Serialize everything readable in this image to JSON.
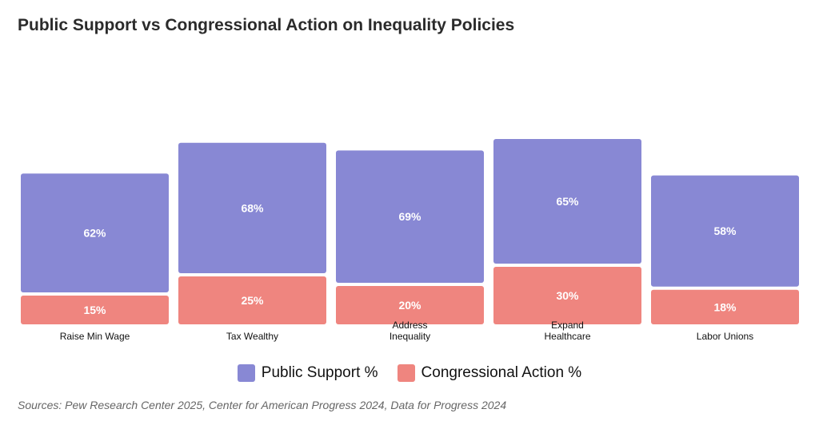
{
  "title": "Public Support vs Congressional Action on Inequality Policies",
  "source": "Sources: Pew Research Center 2025, Center for American Progress 2024, Data for Progress 2024",
  "colors": {
    "public_support": "#8888d4",
    "congressional_action": "#ef857f"
  },
  "chart_data": {
    "type": "bar",
    "stacked": true,
    "categories": [
      [
        "Raise Min Wage"
      ],
      [
        "Tax Wealthy"
      ],
      [
        "Address",
        "Inequality"
      ],
      [
        "Expand",
        "Healthcare"
      ],
      [
        "Labor Unions"
      ]
    ],
    "series": [
      {
        "name": "Public Support %",
        "values": [
          62,
          68,
          69,
          65,
          58
        ],
        "labels": [
          "62%",
          "68%",
          "69%",
          "65%",
          "58%"
        ]
      },
      {
        "name": "Congressional Action %",
        "values": [
          15,
          25,
          20,
          30,
          18
        ],
        "labels": [
          "15%",
          "25%",
          "20%",
          "30%",
          "18%"
        ]
      }
    ],
    "legend": "bottom",
    "grid": false
  }
}
